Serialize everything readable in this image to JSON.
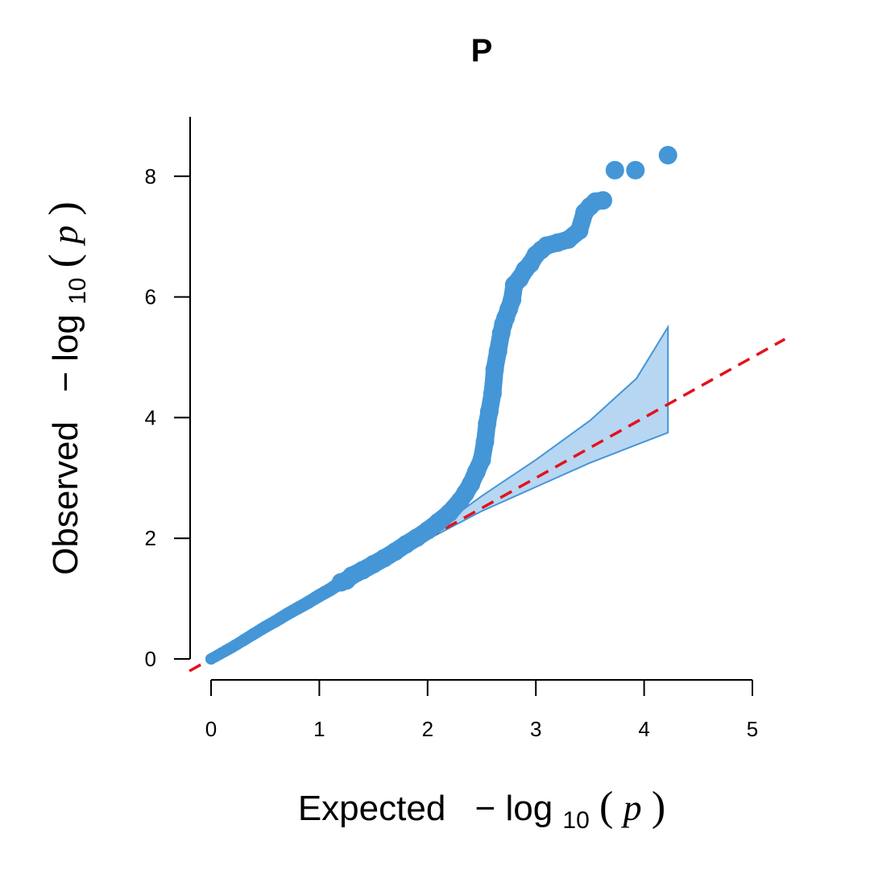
{
  "chart_data": {
    "type": "scatter",
    "title": "P",
    "xlabel": {
      "main": "Expected",
      "minus": "−",
      "log": "log",
      "base": "10",
      "open": "(",
      "var": "p",
      "close": ")"
    },
    "ylabel": {
      "main": "Observed",
      "minus": "−",
      "log": "log",
      "base": "10",
      "open": "(",
      "var": "p",
      "close": ")"
    },
    "xlim": [
      0,
      5
    ],
    "ylim": [
      0,
      8.5
    ],
    "x_ticks": [
      "0",
      "1",
      "2",
      "3",
      "4",
      "5"
    ],
    "y_ticks": [
      "0",
      "2",
      "4",
      "6",
      "8"
    ],
    "grid": false,
    "colors": {
      "points": "#4596d6",
      "band_fill": "#b7d6f2",
      "band_edge": "#4596d6",
      "reference_line": "#e3121b"
    },
    "reference_line": {
      "slope": 1,
      "intercept": 0,
      "style": "dashed"
    },
    "confidence_band": {
      "x": [
        2.0,
        2.5,
        3.0,
        3.5,
        3.93,
        4.22
      ],
      "upper": [
        2.05,
        2.7,
        3.3,
        3.95,
        4.65,
        5.5
      ],
      "lower": [
        1.98,
        2.45,
        2.85,
        3.25,
        3.55,
        3.75
      ]
    },
    "points": {
      "x": [
        0.0,
        0.1,
        0.2,
        0.3,
        0.4,
        0.5,
        0.6,
        0.7,
        0.8,
        0.9,
        1.0,
        1.1,
        1.2,
        1.25,
        1.3,
        1.4,
        1.5,
        1.6,
        1.7,
        1.8,
        1.9,
        2.0,
        2.1,
        2.2,
        2.3,
        2.35,
        2.4,
        2.45,
        2.5,
        2.53,
        2.55,
        2.57,
        2.6,
        2.62,
        2.65,
        2.68,
        2.7,
        2.72,
        2.75,
        2.78,
        2.8,
        2.85,
        2.9,
        2.95,
        3.0,
        3.05,
        3.1,
        3.2,
        3.3,
        3.4,
        3.45,
        3.5,
        3.55,
        3.62,
        3.73,
        3.92,
        4.22
      ],
      "y": [
        0.0,
        0.1,
        0.2,
        0.31,
        0.42,
        0.53,
        0.63,
        0.74,
        0.84,
        0.94,
        1.05,
        1.15,
        1.27,
        1.3,
        1.38,
        1.47,
        1.57,
        1.67,
        1.78,
        1.9,
        2.01,
        2.13,
        2.27,
        2.42,
        2.62,
        2.75,
        2.9,
        3.1,
        3.3,
        3.6,
        3.9,
        4.1,
        4.4,
        4.8,
        5.1,
        5.4,
        5.55,
        5.65,
        5.8,
        5.95,
        6.2,
        6.3,
        6.45,
        6.55,
        6.7,
        6.78,
        6.85,
        6.9,
        6.95,
        7.1,
        7.4,
        7.5,
        7.58,
        7.6,
        8.1,
        8.1,
        8.35
      ]
    }
  }
}
